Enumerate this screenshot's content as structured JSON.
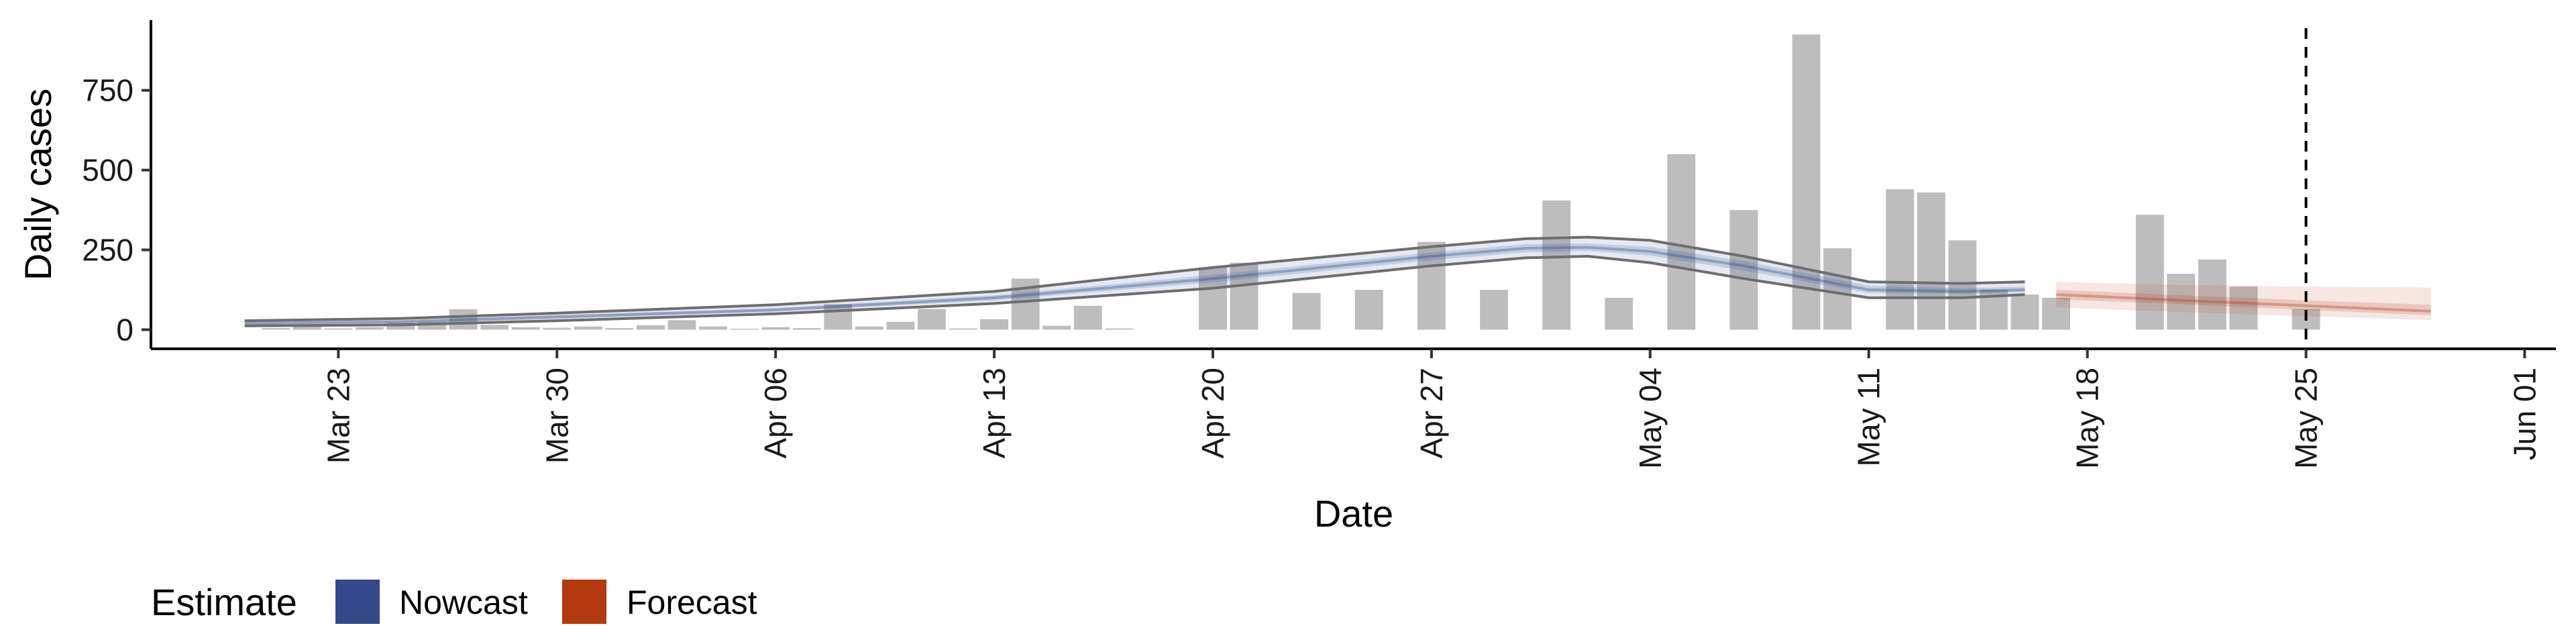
{
  "chart_data": {
    "type": "bar",
    "xlabel": "Date",
    "ylabel": "Daily cases",
    "xlim": [
      "2020-03-17",
      "2020-06-02"
    ],
    "ylim": [
      -60,
      970
    ],
    "yticks": [
      0,
      250,
      500,
      750
    ],
    "xticks": [
      {
        "date": "2020-03-23",
        "label": "Mar 23"
      },
      {
        "date": "2020-03-30",
        "label": "Mar 30"
      },
      {
        "date": "2020-04-06",
        "label": "Apr 06"
      },
      {
        "date": "2020-04-13",
        "label": "Apr 13"
      },
      {
        "date": "2020-04-20",
        "label": "Apr 20"
      },
      {
        "date": "2020-04-27",
        "label": "Apr 27"
      },
      {
        "date": "2020-05-04",
        "label": "May 04"
      },
      {
        "date": "2020-05-11",
        "label": "May 11"
      },
      {
        "date": "2020-05-18",
        "label": "May 18"
      },
      {
        "date": "2020-05-25",
        "label": "May 25"
      },
      {
        "date": "2020-06-01",
        "label": "Jun 01"
      }
    ],
    "bars": {
      "dates": [
        "2020-03-21",
        "2020-03-22",
        "2020-03-23",
        "2020-03-24",
        "2020-03-25",
        "2020-03-26",
        "2020-03-27",
        "2020-03-28",
        "2020-03-29",
        "2020-03-30",
        "2020-03-31",
        "2020-04-01",
        "2020-04-02",
        "2020-04-03",
        "2020-04-04",
        "2020-04-05",
        "2020-04-06",
        "2020-04-07",
        "2020-04-08",
        "2020-04-09",
        "2020-04-10",
        "2020-04-11",
        "2020-04-12",
        "2020-04-13",
        "2020-04-14",
        "2020-04-15",
        "2020-04-16",
        "2020-04-17",
        "2020-04-18",
        "2020-04-19",
        "2020-04-20",
        "2020-04-21",
        "2020-04-22",
        "2020-04-23",
        "2020-04-24",
        "2020-04-25",
        "2020-04-26",
        "2020-04-27",
        "2020-04-28",
        "2020-04-29",
        "2020-04-30",
        "2020-05-01",
        "2020-05-02",
        "2020-05-03",
        "2020-05-04",
        "2020-05-05",
        "2020-05-06",
        "2020-05-07",
        "2020-05-08",
        "2020-05-09",
        "2020-05-10",
        "2020-05-11",
        "2020-05-12",
        "2020-05-13",
        "2020-05-14",
        "2020-05-15",
        "2020-05-16",
        "2020-05-17",
        "2020-05-18",
        "2020-05-19",
        "2020-05-20",
        "2020-05-21",
        "2020-05-22",
        "2020-05-23",
        "2020-05-24",
        "2020-05-25"
      ],
      "values": [
        5,
        10,
        4,
        8,
        22,
        25,
        64,
        15,
        8,
        6,
        10,
        5,
        14,
        30,
        10,
        3,
        8,
        5,
        80,
        10,
        25,
        65,
        4,
        33,
        160,
        12,
        75,
        4,
        0,
        0,
        195,
        210,
        0,
        115,
        0,
        125,
        0,
        275,
        0,
        125,
        0,
        405,
        0,
        100,
        0,
        550,
        0,
        375,
        0,
        925,
        255,
        0,
        440,
        430,
        280,
        125,
        110,
        100,
        0,
        0,
        360,
        175,
        220,
        135,
        0,
        65
      ]
    },
    "series": [
      {
        "name": "Nowcast",
        "color": "#2f4b8a",
        "dates": [
          "2020-03-20",
          "2020-03-25",
          "2020-03-30",
          "2020-04-06",
          "2020-04-13",
          "2020-04-20",
          "2020-04-27",
          "2020-04-30",
          "2020-05-02",
          "2020-05-04",
          "2020-05-07",
          "2020-05-11",
          "2020-05-14",
          "2020-05-16"
        ],
        "median": [
          20,
          25,
          40,
          62,
          100,
          160,
          230,
          255,
          258,
          245,
          200,
          125,
          120,
          125
        ],
        "lower_90": [
          12,
          15,
          28,
          50,
          82,
          130,
          200,
          225,
          230,
          210,
          160,
          100,
          100,
          110
        ],
        "upper_90": [
          28,
          35,
          52,
          78,
          120,
          195,
          260,
          285,
          290,
          280,
          230,
          150,
          145,
          150
        ],
        "lower_50": [
          16,
          20,
          34,
          57,
          92,
          148,
          218,
          242,
          247,
          232,
          185,
          115,
          112,
          118
        ],
        "upper_50": [
          23,
          30,
          46,
          68,
          108,
          172,
          242,
          268,
          270,
          260,
          215,
          138,
          130,
          135
        ]
      },
      {
        "name": "Forecast",
        "color": "#b5391a",
        "dates": [
          "2020-05-17",
          "2020-05-21",
          "2020-05-25",
          "2020-05-29"
        ],
        "median": [
          110,
          92,
          75,
          58
        ],
        "lower_90": [
          70,
          55,
          42,
          30
        ],
        "upper_90": [
          150,
          140,
          135,
          132
        ],
        "lower_50": [
          95,
          80,
          62,
          45
        ],
        "upper_50": [
          125,
          108,
          92,
          78
        ]
      }
    ],
    "vline": "2020-05-25",
    "legend": {
      "title": "Estimate",
      "position": "bottom-left",
      "items": [
        {
          "label": "Nowcast",
          "color": "#34498a"
        },
        {
          "label": "Forecast",
          "color": "#b33a0d"
        }
      ]
    },
    "grid": false
  }
}
